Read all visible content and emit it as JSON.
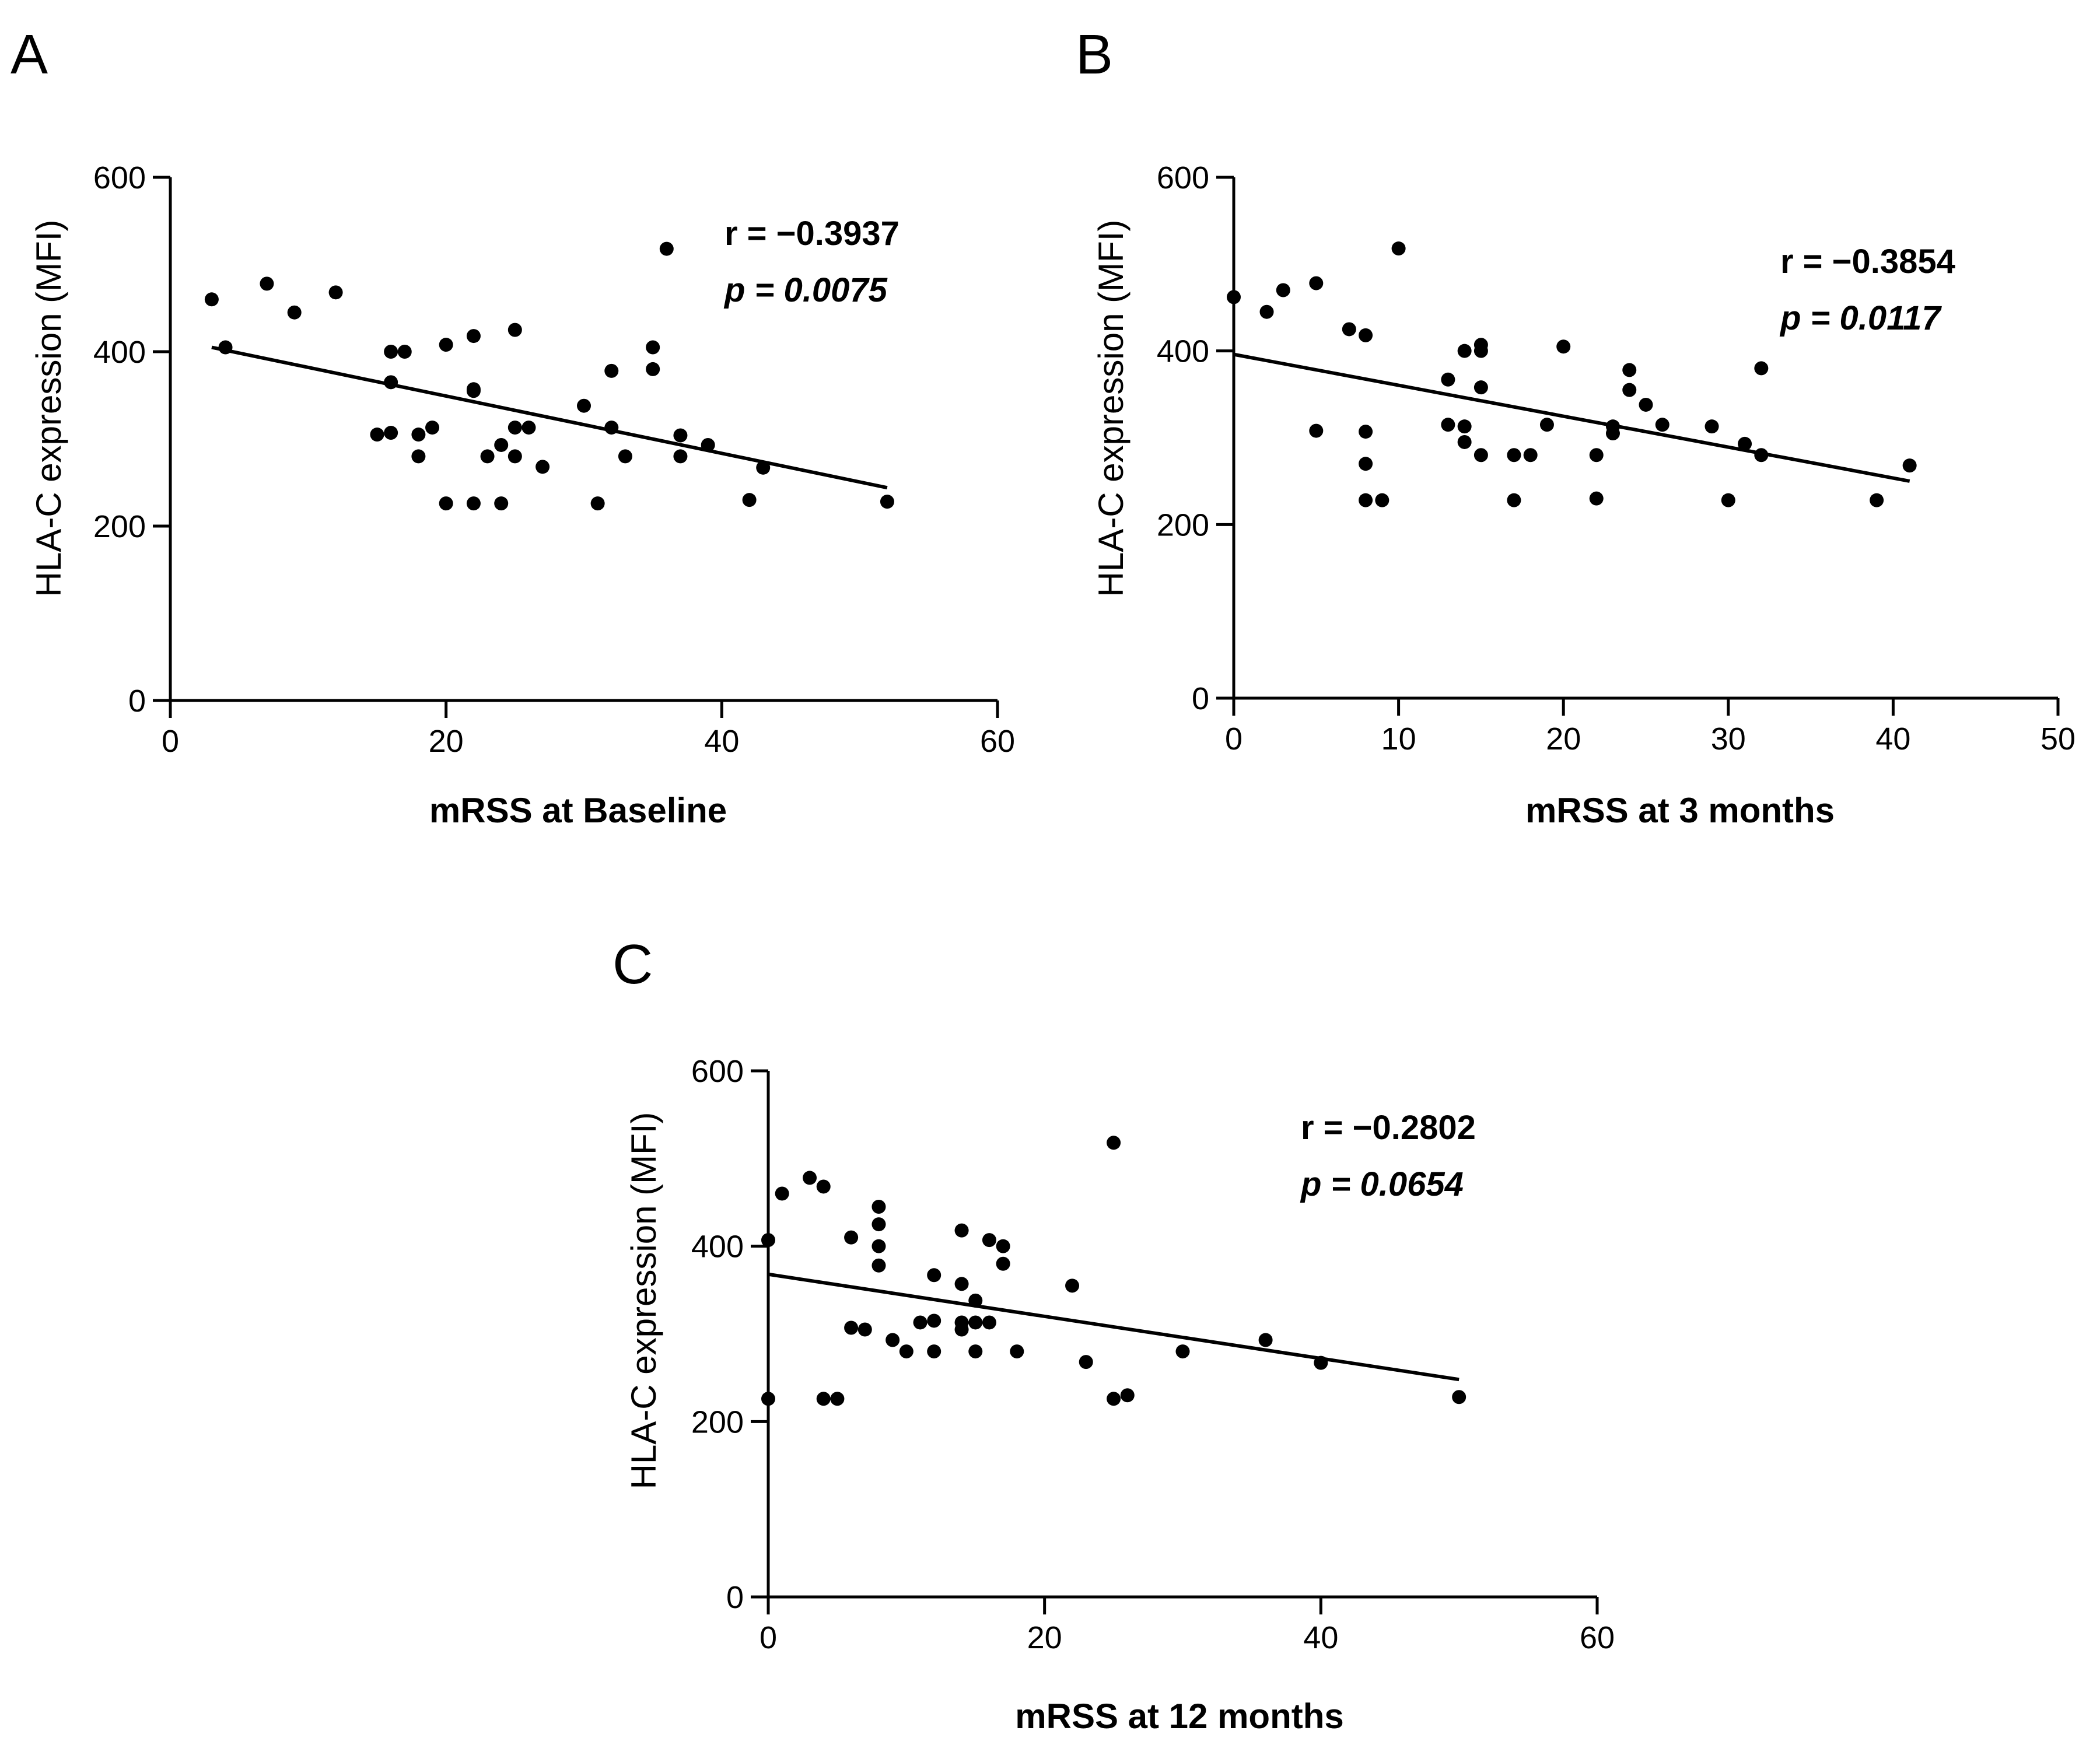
{
  "chart_data": [
    {
      "type": "scatter",
      "panel_label": "A",
      "xlabel": "mRSS at Baseline",
      "ylabel": "HLA-C expression (MFI)",
      "xlim": [
        0,
        60
      ],
      "ylim": [
        0,
        600
      ],
      "x_ticks": [
        0,
        20,
        40,
        60
      ],
      "y_ticks": [
        0,
        200,
        400,
        600
      ],
      "annotation_r": "r = −0.3937",
      "annotation_p": "p = 0.0075",
      "regression": {
        "x": [
          3,
          52
        ],
        "y": [
          405,
          244
        ]
      },
      "points": [
        [
          3,
          460
        ],
        [
          4,
          405
        ],
        [
          7,
          478
        ],
        [
          9,
          445
        ],
        [
          12,
          468
        ],
        [
          15,
          305
        ],
        [
          16,
          400
        ],
        [
          16,
          365
        ],
        [
          16,
          307
        ],
        [
          17,
          400
        ],
        [
          18,
          305
        ],
        [
          18,
          280
        ],
        [
          19,
          313
        ],
        [
          20,
          408
        ],
        [
          20,
          226
        ],
        [
          22,
          418
        ],
        [
          22,
          357
        ],
        [
          22,
          355
        ],
        [
          22,
          226
        ],
        [
          23,
          280
        ],
        [
          24,
          293
        ],
        [
          24,
          226
        ],
        [
          25,
          425
        ],
        [
          25,
          313
        ],
        [
          25,
          280
        ],
        [
          26,
          313
        ],
        [
          27,
          268
        ],
        [
          30,
          338
        ],
        [
          31,
          226
        ],
        [
          32,
          378
        ],
        [
          32,
          313
        ],
        [
          33,
          280
        ],
        [
          35,
          405
        ],
        [
          35,
          380
        ],
        [
          36,
          518
        ],
        [
          37,
          304
        ],
        [
          37,
          280
        ],
        [
          39,
          293
        ],
        [
          42,
          230
        ],
        [
          43,
          267
        ],
        [
          52,
          228
        ]
      ]
    },
    {
      "type": "scatter",
      "panel_label": "B",
      "xlabel": "mRSS at 3 months",
      "ylabel": "HLA-C expression (MFI)",
      "xlim": [
        0,
        50
      ],
      "ylim": [
        0,
        600
      ],
      "x_ticks": [
        0,
        10,
        20,
        30,
        40,
        50
      ],
      "y_ticks": [
        0,
        200,
        400,
        600
      ],
      "annotation_r": "r = −0.3854",
      "annotation_p": "p = 0.0117",
      "regression": {
        "x": [
          0,
          41
        ],
        "y": [
          396,
          250
        ]
      },
      "points": [
        [
          0,
          462
        ],
        [
          2,
          445
        ],
        [
          3,
          470
        ],
        [
          5,
          478
        ],
        [
          5,
          308
        ],
        [
          7,
          425
        ],
        [
          8,
          418
        ],
        [
          8,
          307
        ],
        [
          8,
          270
        ],
        [
          8,
          228
        ],
        [
          9,
          228
        ],
        [
          10,
          518
        ],
        [
          13,
          367
        ],
        [
          13,
          315
        ],
        [
          14,
          400
        ],
        [
          14,
          313
        ],
        [
          14,
          295
        ],
        [
          15,
          407
        ],
        [
          15,
          400
        ],
        [
          15,
          358
        ],
        [
          15,
          280
        ],
        [
          17,
          280
        ],
        [
          17,
          228
        ],
        [
          18,
          280
        ],
        [
          19,
          315
        ],
        [
          20,
          405
        ],
        [
          22,
          280
        ],
        [
          22,
          230
        ],
        [
          23,
          313
        ],
        [
          23,
          305
        ],
        [
          24,
          378
        ],
        [
          24,
          355
        ],
        [
          25,
          338
        ],
        [
          26,
          315
        ],
        [
          29,
          313
        ],
        [
          30,
          228
        ],
        [
          31,
          293
        ],
        [
          32,
          380
        ],
        [
          32,
          280
        ],
        [
          39,
          228
        ],
        [
          41,
          268
        ]
      ]
    },
    {
      "type": "scatter",
      "panel_label": "C",
      "xlabel": "mRSS at 12 months",
      "ylabel": "HLA-C expression (MFI)",
      "xlim": [
        0,
        60
      ],
      "ylim": [
        0,
        600
      ],
      "x_ticks": [
        0,
        20,
        40,
        60
      ],
      "y_ticks": [
        0,
        200,
        400,
        600
      ],
      "annotation_r": "r = −0.2802",
      "annotation_p": "p = 0.0654",
      "regression": {
        "x": [
          0,
          50
        ],
        "y": [
          368,
          248
        ]
      },
      "points": [
        [
          0,
          407
        ],
        [
          0,
          226
        ],
        [
          1,
          460
        ],
        [
          3,
          478
        ],
        [
          4,
          468
        ],
        [
          4,
          226
        ],
        [
          5,
          226
        ],
        [
          6,
          410
        ],
        [
          6,
          307
        ],
        [
          7,
          305
        ],
        [
          8,
          445
        ],
        [
          8,
          425
        ],
        [
          8,
          400
        ],
        [
          8,
          378
        ],
        [
          9,
          293
        ],
        [
          10,
          280
        ],
        [
          11,
          313
        ],
        [
          12,
          367
        ],
        [
          12,
          315
        ],
        [
          12,
          280
        ],
        [
          14,
          418
        ],
        [
          14,
          357
        ],
        [
          14,
          313
        ],
        [
          14,
          305
        ],
        [
          15,
          338
        ],
        [
          15,
          313
        ],
        [
          15,
          280
        ],
        [
          16,
          407
        ],
        [
          16,
          313
        ],
        [
          17,
          400
        ],
        [
          17,
          380
        ],
        [
          18,
          280
        ],
        [
          22,
          355
        ],
        [
          23,
          268
        ],
        [
          25,
          518
        ],
        [
          25,
          226
        ],
        [
          26,
          230
        ],
        [
          30,
          280
        ],
        [
          36,
          293
        ],
        [
          40,
          267
        ],
        [
          50,
          228
        ]
      ]
    }
  ]
}
